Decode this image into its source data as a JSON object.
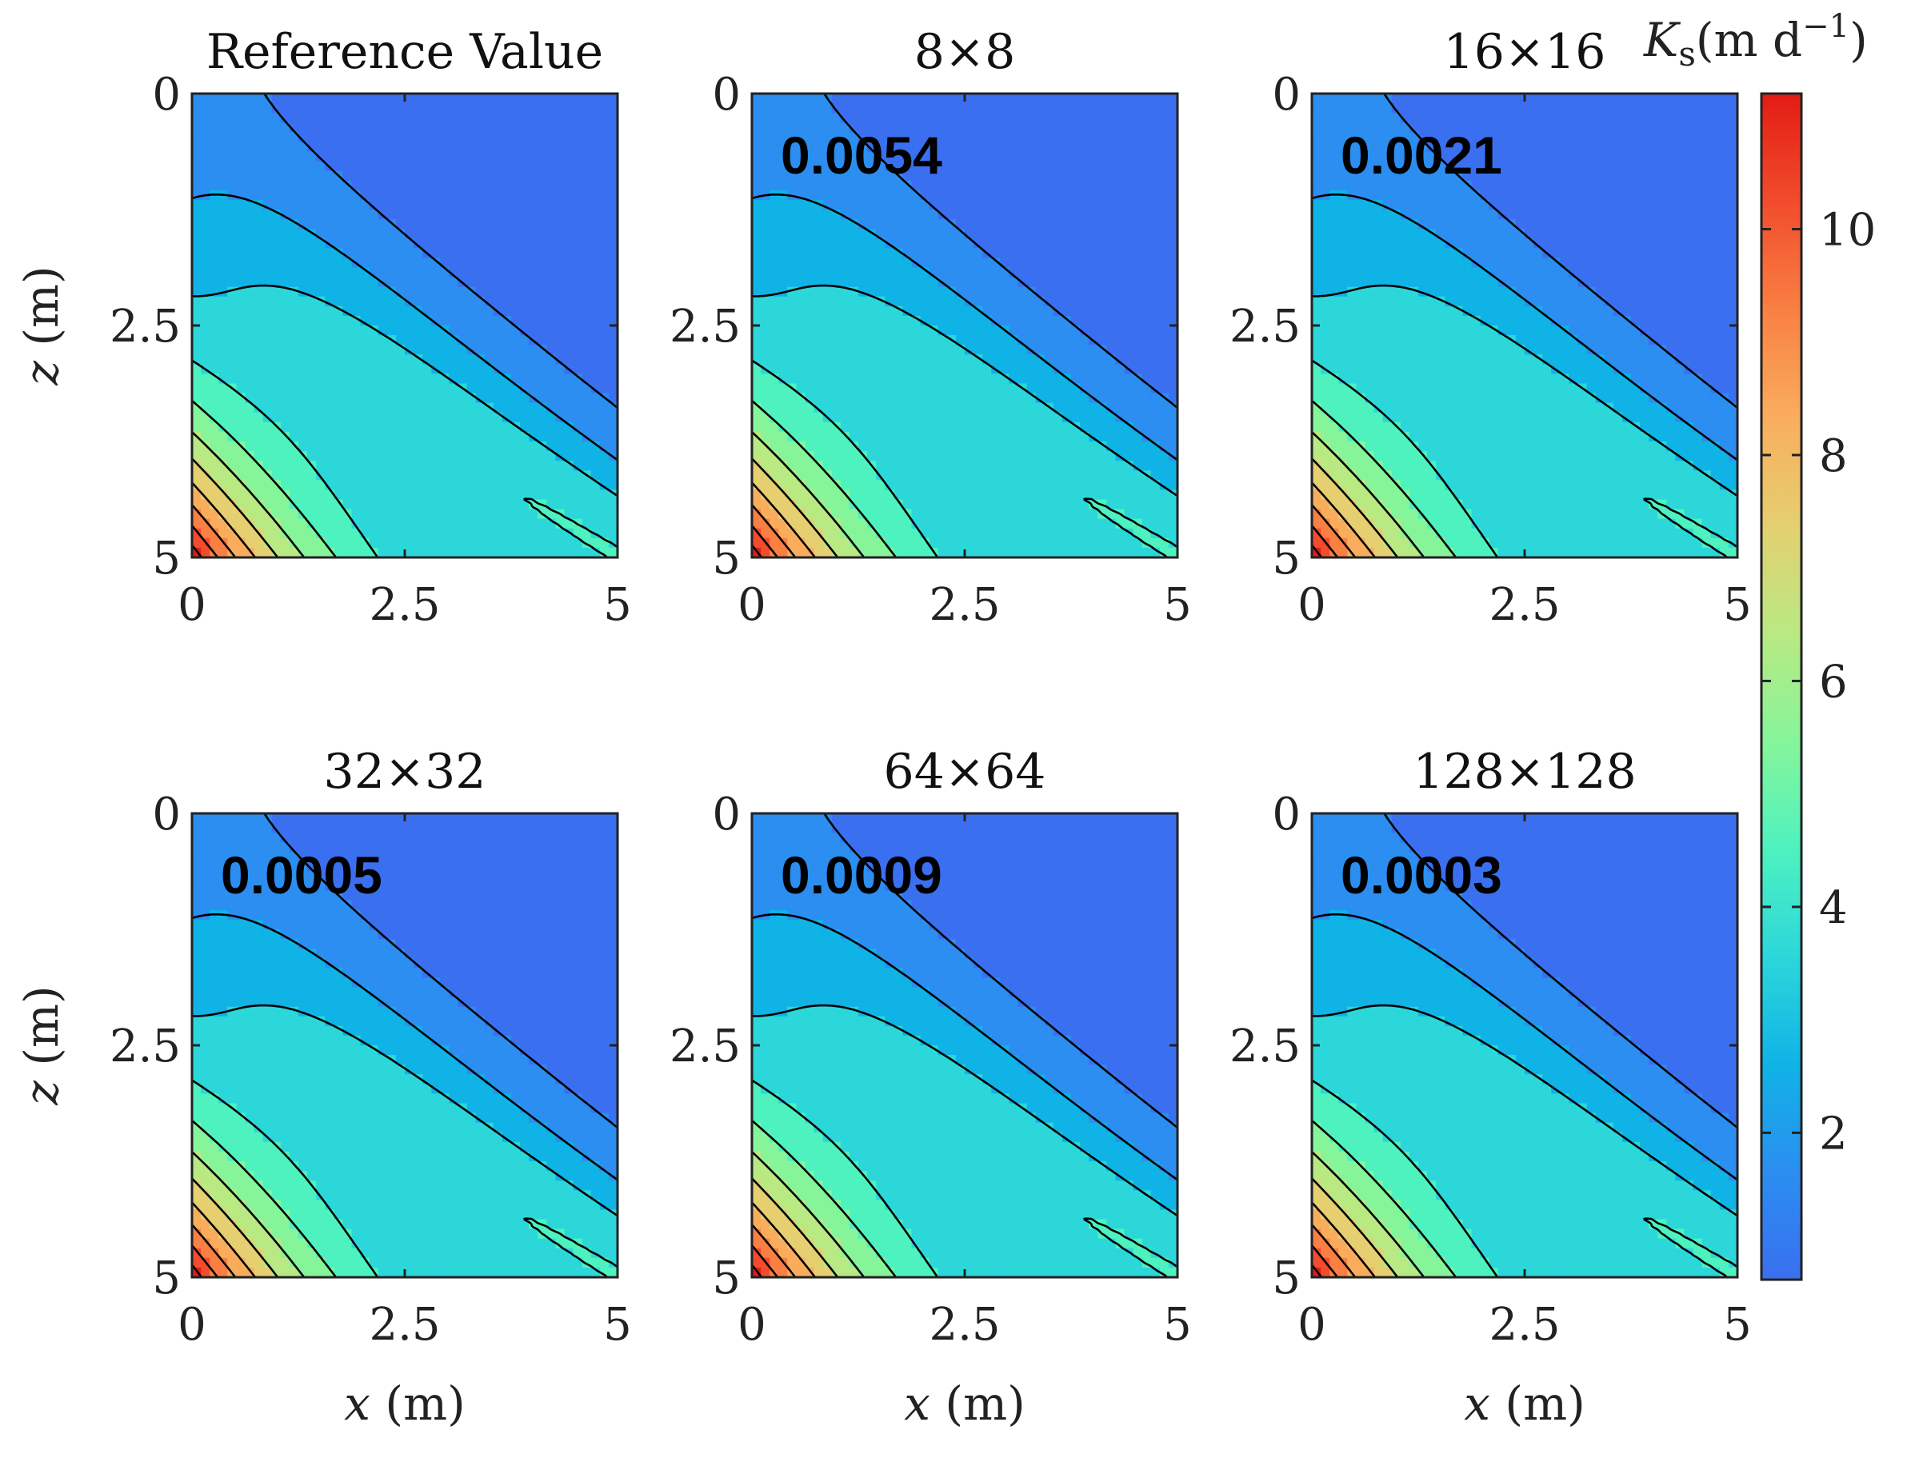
{
  "chart_data": {
    "type": "contour",
    "colorbar": {
      "label_symbol": "K",
      "label_subscript": "s",
      "label_units": "(m d",
      "label_superscript": "−1",
      "label_close": ")",
      "ticks": [
        "2",
        "4",
        "6",
        "8",
        "10"
      ],
      "tick_values": [
        2,
        4,
        6,
        8,
        10
      ],
      "range": [
        0.7,
        11.2
      ],
      "colormap": [
        "#3a6ff0",
        "#2b8ef0",
        "#10b3e6",
        "#2cd7da",
        "#4ef2bf",
        "#86f59a",
        "#b9e982",
        "#e5cf70",
        "#f9ad5c",
        "#f97f43",
        "#f14c2c",
        "#e31c14"
      ]
    },
    "x_label_symbol": "x",
    "z_label_symbol": "z",
    "unit": "(m)",
    "x_ticks": [
      "0",
      "2.5",
      "5"
    ],
    "z_ticks": [
      "0",
      "2.5",
      "5"
    ],
    "xlim": [
      0,
      5
    ],
    "zlim": [
      0,
      5
    ],
    "panels": [
      {
        "title": "Reference Value",
        "rmse": ""
      },
      {
        "title": "8×8",
        "rmse": "0.0054"
      },
      {
        "title": "16×16",
        "rmse": "0.0021"
      },
      {
        "title": "32×32",
        "rmse": "0.0005"
      },
      {
        "title": "64×64",
        "rmse": "0.0009"
      },
      {
        "title": "128×128",
        "rmse": "0.0003"
      }
    ]
  }
}
